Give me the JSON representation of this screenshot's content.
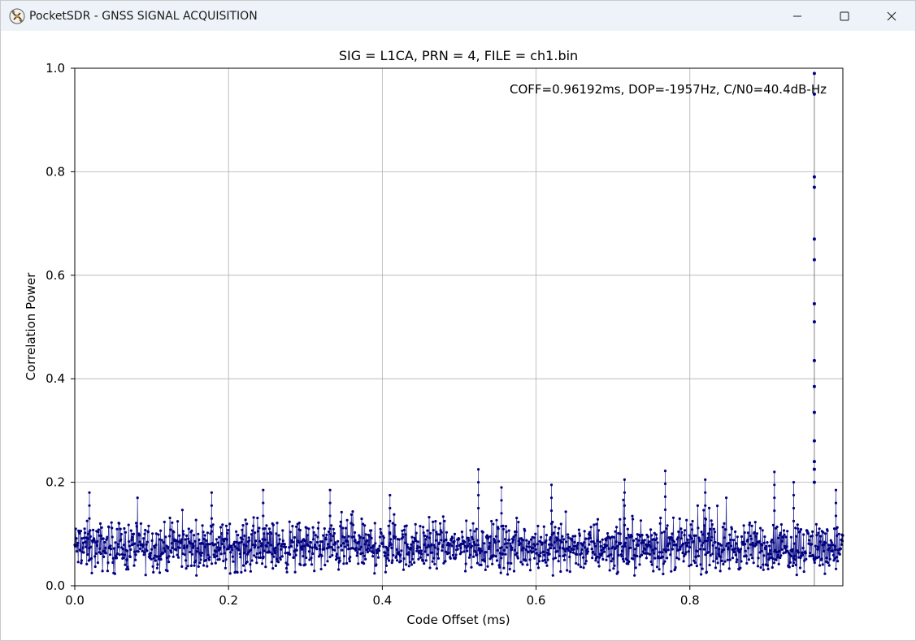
{
  "window": {
    "title": "PocketSDR - GNSS SIGNAL ACQUISITION",
    "icon": "satellite-app-icon",
    "controls": [
      "minimize-icon",
      "maximize-icon",
      "close-icon"
    ]
  },
  "chart_data": {
    "type": "scatter",
    "title": "SIG = L1CA, PRN = 4, FILE = ch1.bin",
    "annotation": "COFF=0.96192ms, DOP=-1957Hz, C/N0=40.4dB-Hz",
    "xlabel": "Code Offset (ms)",
    "ylabel": "Correlation Power",
    "xlim": [
      0,
      0.999
    ],
    "ylim": [
      0,
      1.0
    ],
    "xticks": [
      0.0,
      0.2,
      0.4,
      0.6,
      0.8
    ],
    "xtick_labels": [
      "0.0",
      "0.2",
      "0.4",
      "0.6",
      "0.8"
    ],
    "yticks": [
      0.0,
      0.2,
      0.4,
      0.6,
      0.8,
      1.0
    ],
    "ytick_labels": [
      "0.0",
      "0.2",
      "0.4",
      "0.6",
      "0.8",
      "1.0"
    ],
    "grid": true,
    "color": "#000080",
    "line_color": "#808080",
    "noise": {
      "mean": 0.075,
      "spread": 0.045,
      "max": 0.225
    },
    "peak": {
      "x": 0.96192,
      "values": [
        0.99,
        0.95,
        0.79,
        0.77,
        0.67,
        0.63,
        0.545,
        0.51,
        0.435,
        0.385,
        0.335,
        0.28,
        0.24,
        0.225,
        0.2
      ]
    },
    "spikes": [
      {
        "x": 0.019,
        "y": 0.18
      },
      {
        "x": 0.178,
        "y": 0.18
      },
      {
        "x": 0.245,
        "y": 0.185
      },
      {
        "x": 0.332,
        "y": 0.185
      },
      {
        "x": 0.41,
        "y": 0.175
      },
      {
        "x": 0.525,
        "y": 0.225
      },
      {
        "x": 0.555,
        "y": 0.19
      },
      {
        "x": 0.62,
        "y": 0.195
      },
      {
        "x": 0.715,
        "y": 0.205
      },
      {
        "x": 0.768,
        "y": 0.222
      },
      {
        "x": 0.82,
        "y": 0.205
      },
      {
        "x": 0.91,
        "y": 0.22
      },
      {
        "x": 0.935,
        "y": 0.2
      },
      {
        "x": 0.99,
        "y": 0.185
      }
    ]
  }
}
